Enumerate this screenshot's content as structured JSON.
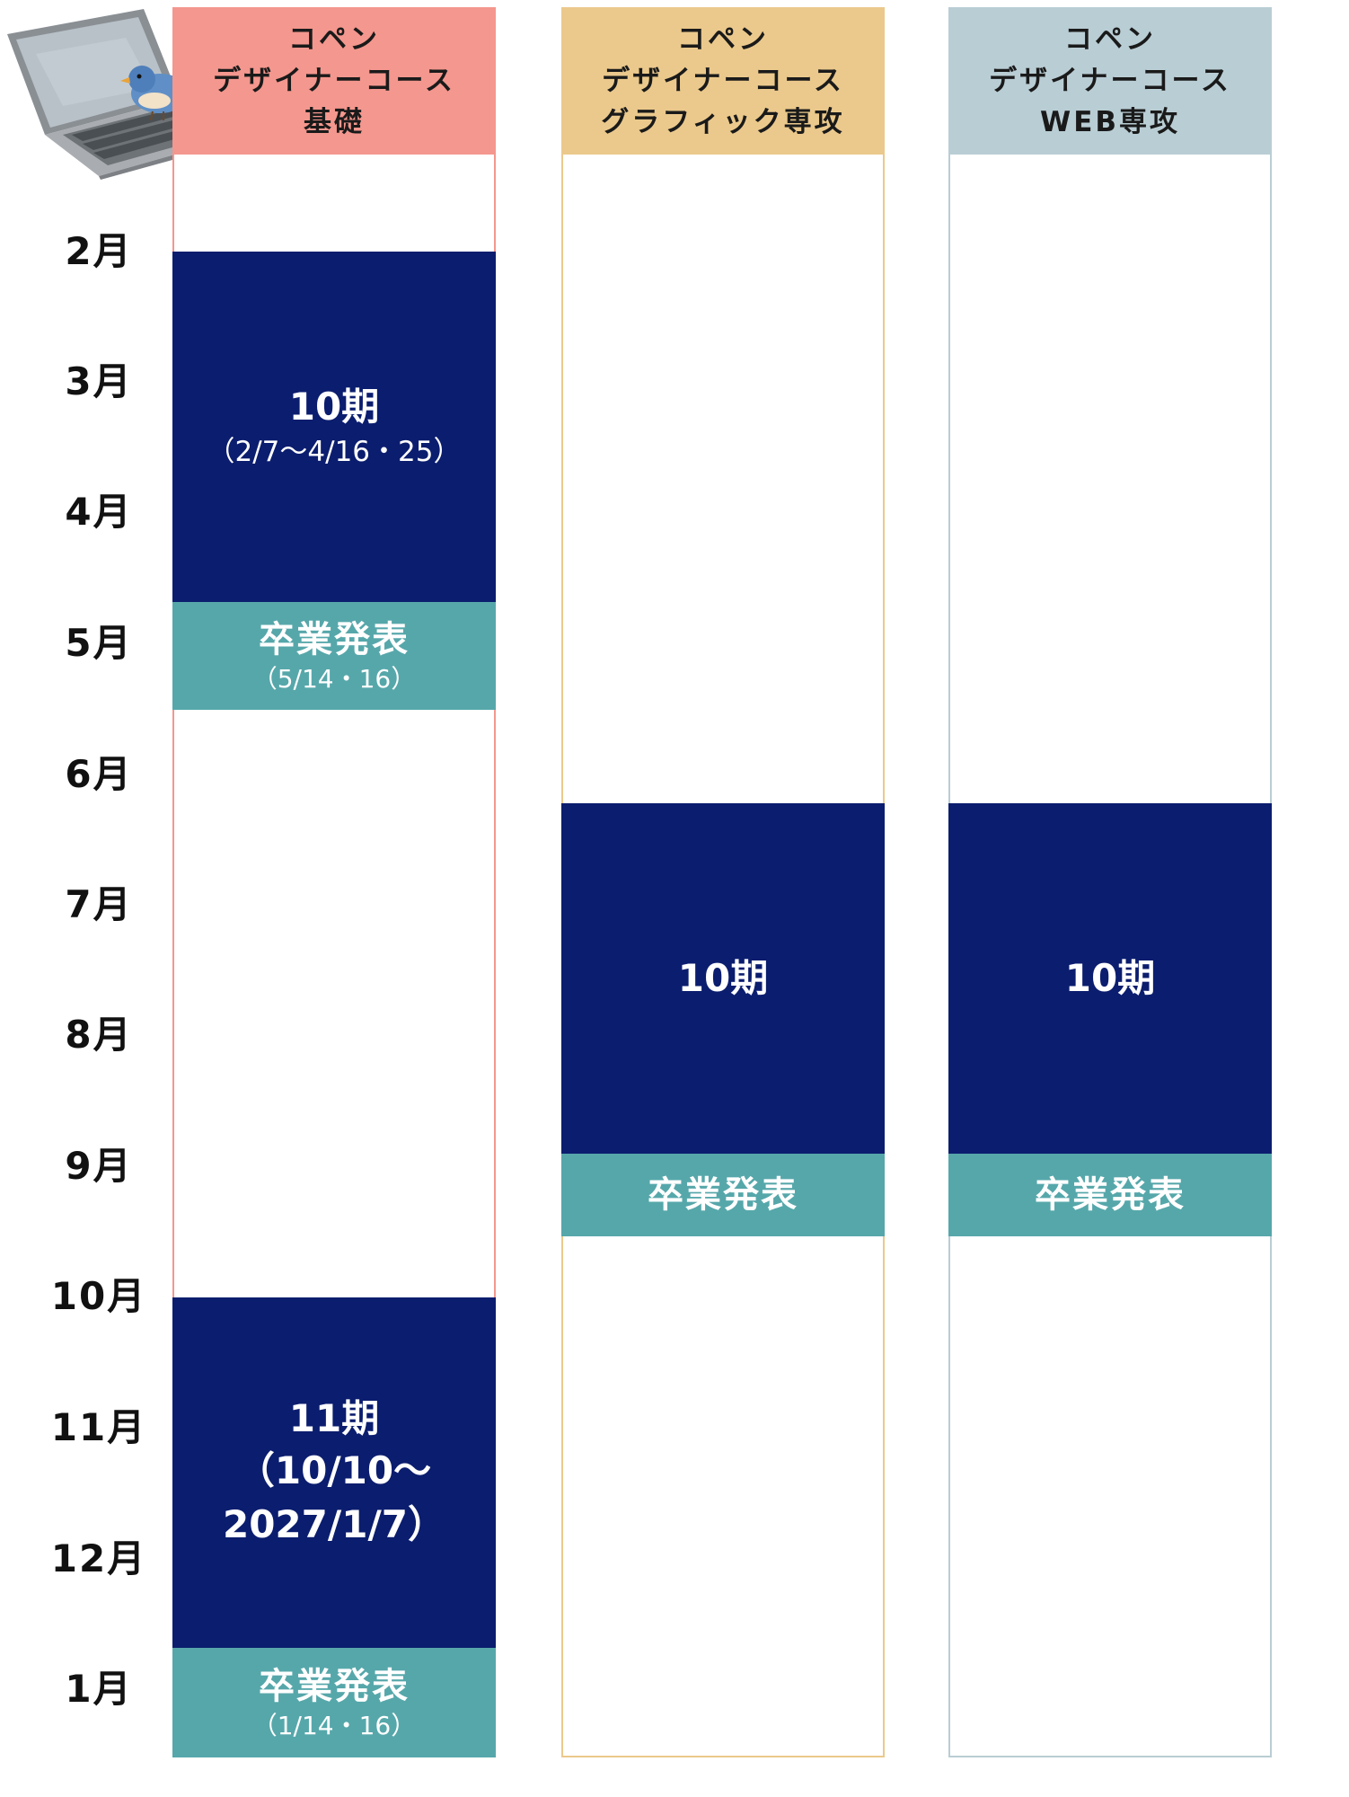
{
  "months": [
    "2月",
    "3月",
    "4月",
    "5月",
    "6月",
    "7月",
    "8月",
    "9月",
    "10月",
    "11月",
    "12月",
    "1月"
  ],
  "columns": [
    {
      "header": [
        "コペン",
        "デザイナーコース",
        "基礎"
      ],
      "term_10": {
        "label": "10期",
        "dates": "（2/7～4/16・25）"
      },
      "grad_1": {
        "label": "卒業発表",
        "dates": "（5/14・16）"
      },
      "term_11": {
        "label": "11期",
        "dates_line1": "（10/10～",
        "dates_line2": "2027/1/7）"
      },
      "grad_2": {
        "label": "卒業発表",
        "dates": "（1/14・16）"
      }
    },
    {
      "header": [
        "コペン",
        "デザイナーコース",
        "グラフィック専攻"
      ],
      "term_10": {
        "label": "10期"
      },
      "grad": {
        "label": "卒業発表"
      }
    },
    {
      "header": [
        "コペン",
        "デザイナーコース",
        "WEB専攻"
      ],
      "term_10": {
        "label": "10期"
      },
      "grad": {
        "label": "卒業発表"
      }
    }
  ],
  "colors": {
    "navy": "#0b1d6e",
    "teal": "#56a7aa",
    "header_basic": "#f4978e",
    "header_graphic": "#ebc98c",
    "header_web": "#b9cdd4"
  },
  "icons": [
    "laptop-icon",
    "bird-icon"
  ]
}
